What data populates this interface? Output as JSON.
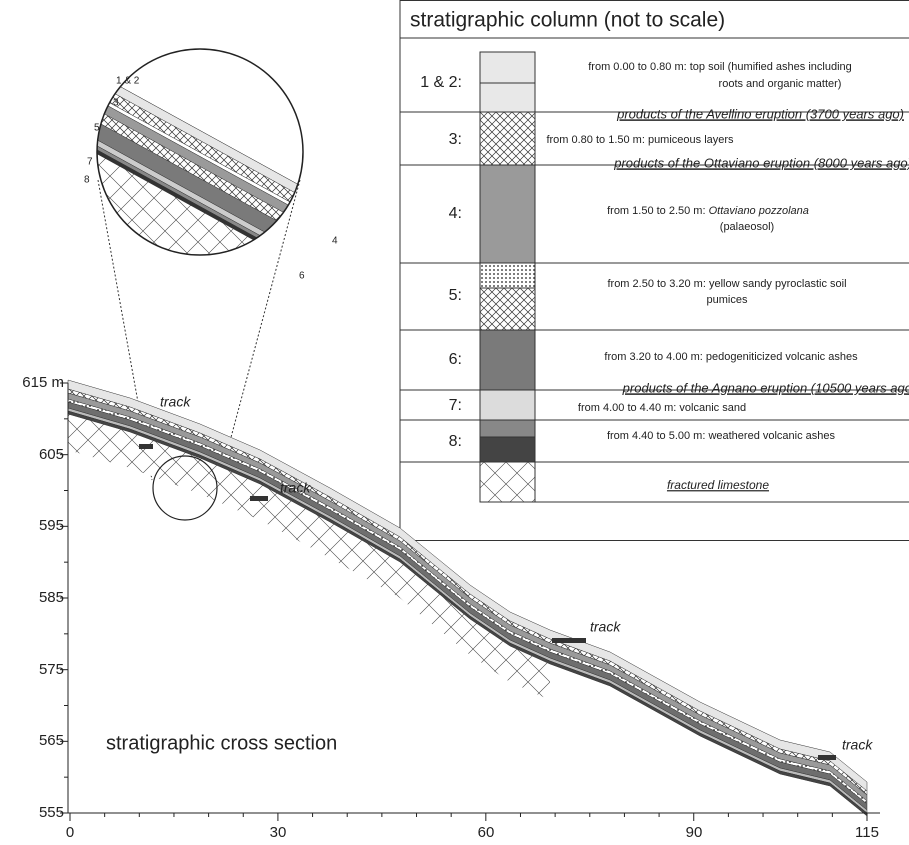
{
  "cross_section": {
    "label": "stratigraphic cross section",
    "y_tick_labels": [
      "615 m",
      "605",
      "595",
      "585",
      "575",
      "565",
      "555"
    ],
    "x_tick_labels": [
      "0",
      "30",
      "60",
      "90",
      "115"
    ],
    "track_labels": [
      "track",
      "track",
      "track",
      "track"
    ]
  },
  "inset": {
    "labels": [
      "1 & 2",
      "3",
      "5",
      "7",
      "8",
      "4",
      "6"
    ]
  },
  "column": {
    "title": "stratigraphic column (not to scale)",
    "rows": [
      {
        "number": "1 & 2:",
        "text": [
          "from 0.00 to 0.80 m: top soil (humified ashes including",
          "roots and organic matter)"
        ]
      },
      {
        "number": "3:",
        "text": [
          "from 0.80 to 1.50 m: pumiceous layers"
        ]
      },
      {
        "number": "4:",
        "text": [
          "from 1.50 to 2.50 m: ",
          "Ottaviano pozzolana",
          "(palaeosol)"
        ]
      },
      {
        "number": "5:",
        "text": [
          "from 2.50 to 3.20 m: yellow sandy pyroclastic soil",
          "pumices"
        ]
      },
      {
        "number": "6:",
        "text": [
          "from 3.20 to 4.00 m: pedogeniticized volcanic ashes"
        ]
      },
      {
        "number": "7:",
        "text": [
          "from 4.00 to 4.40 m: volcanic sand"
        ]
      },
      {
        "number": "8:",
        "text": [
          "from 4.40 to 5.00 m: weathered volcanic ashes"
        ]
      }
    ],
    "eruptions": [
      "products of the Avellino eruption (3700 years ago)",
      "products of the Ottaviano eruption (8000 years ago)",
      "products of the Agnano eruption (10500 years ago"
    ],
    "base": "fractured limestone"
  }
}
